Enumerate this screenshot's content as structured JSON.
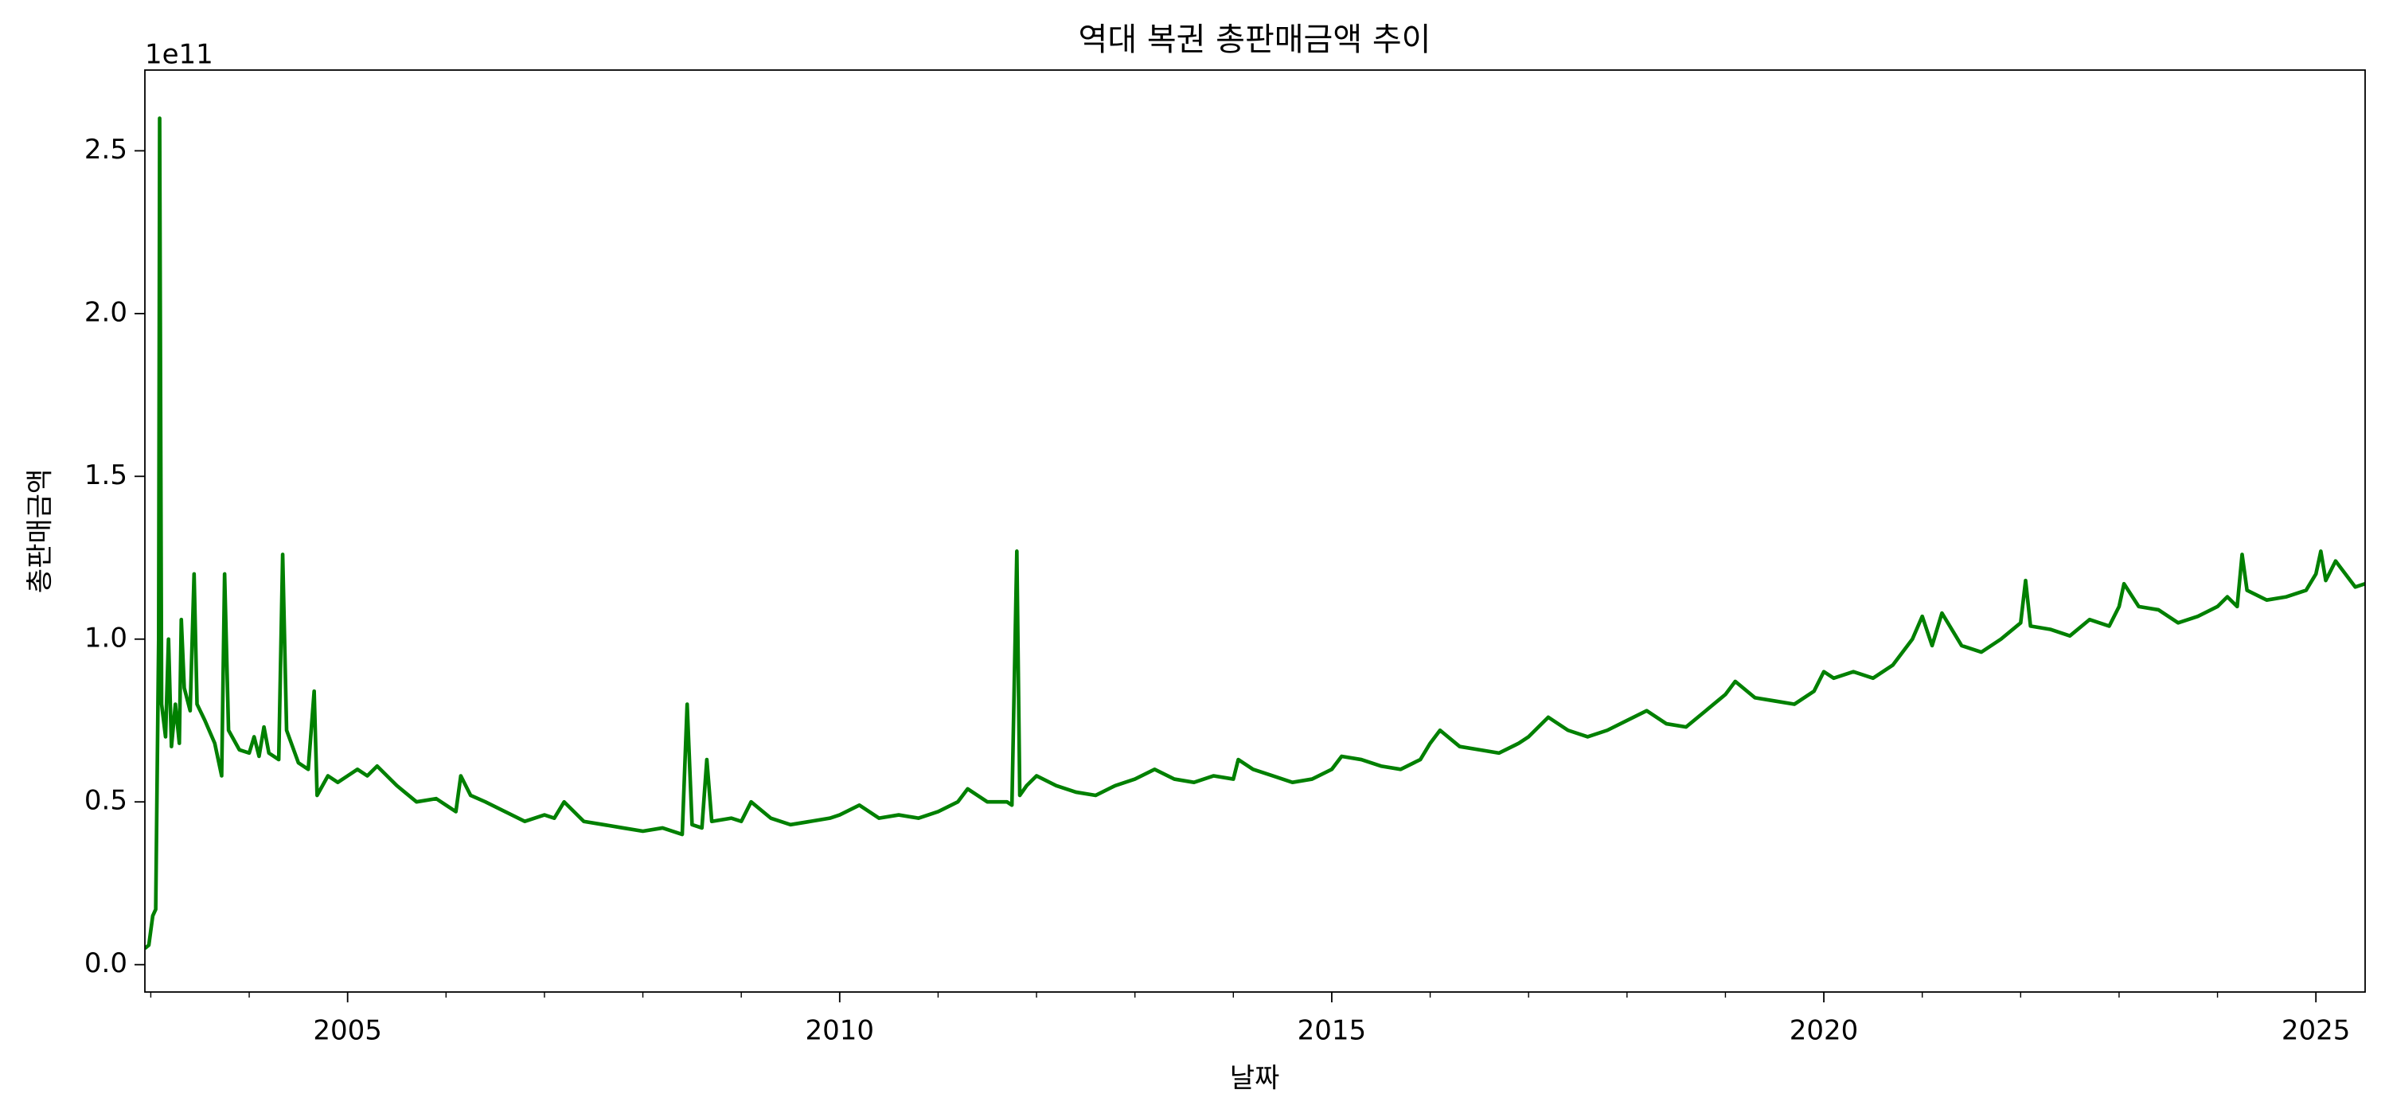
{
  "chart_data": {
    "type": "line",
    "title": "역대 복권 총판매금액 추이",
    "xlabel": "날짜",
    "ylabel": "총판매금액",
    "y_offset_label": "1e11",
    "color": "#008000",
    "xlim": [
      2002.94,
      2025.5
    ],
    "xticks": [
      2005,
      2010,
      2015,
      2020,
      2025
    ],
    "xminor_ticks": [
      2003,
      2004,
      2006,
      2007,
      2008,
      2009,
      2011,
      2012,
      2013,
      2014,
      2016,
      2017,
      2018,
      2019,
      2021,
      2022,
      2023,
      2024
    ],
    "ylim": [
      -8400000000.0,
      274800000000.0
    ],
    "yticks": [
      {
        "value": 0,
        "label": "0.0"
      },
      {
        "value": 50000000000.0,
        "label": "0.5"
      },
      {
        "value": 100000000000.0,
        "label": "1.0"
      },
      {
        "value": 150000000000.0,
        "label": "1.5"
      },
      {
        "value": 200000000000.0,
        "label": "2.0"
      },
      {
        "value": 250000000000.0,
        "label": "2.5"
      }
    ],
    "x": [
      2002.94,
      2002.98,
      2003.02,
      2003.05,
      2003.08,
      2003.09,
      2003.11,
      2003.15,
      2003.18,
      2003.21,
      2003.25,
      2003.29,
      2003.31,
      2003.34,
      2003.4,
      2003.44,
      2003.47,
      2003.55,
      2003.65,
      2003.72,
      2003.75,
      2003.79,
      2003.9,
      2004.0,
      2004.05,
      2004.1,
      2004.15,
      2004.2,
      2004.3,
      2004.34,
      2004.38,
      2004.5,
      2004.6,
      2004.66,
      2004.69,
      2004.8,
      2004.9,
      2005.0,
      2005.1,
      2005.2,
      2005.3,
      2005.5,
      2005.7,
      2005.9,
      2006.0,
      2006.1,
      2006.15,
      2006.25,
      2006.4,
      2006.6,
      2006.8,
      2007.0,
      2007.1,
      2007.2,
      2007.4,
      2007.6,
      2007.8,
      2008.0,
      2008.2,
      2008.4,
      2008.45,
      2008.5,
      2008.6,
      2008.65,
      2008.7,
      2008.9,
      2009.0,
      2009.1,
      2009.3,
      2009.5,
      2009.7,
      2009.9,
      2010.0,
      2010.2,
      2010.4,
      2010.6,
      2010.8,
      2011.0,
      2011.2,
      2011.3,
      2011.5,
      2011.7,
      2011.75,
      2011.8,
      2011.83,
      2011.9,
      2012.0,
      2012.2,
      2012.4,
      2012.6,
      2012.8,
      2013.0,
      2013.2,
      2013.4,
      2013.6,
      2013.8,
      2014.0,
      2014.05,
      2014.2,
      2014.4,
      2014.6,
      2014.8,
      2015.0,
      2015.1,
      2015.3,
      2015.5,
      2015.7,
      2015.9,
      2016.0,
      2016.1,
      2016.3,
      2016.5,
      2016.7,
      2016.9,
      2017.0,
      2017.2,
      2017.4,
      2017.6,
      2017.8,
      2018.0,
      2018.2,
      2018.4,
      2018.6,
      2018.8,
      2019.0,
      2019.1,
      2019.3,
      2019.5,
      2019.7,
      2019.9,
      2020.0,
      2020.1,
      2020.3,
      2020.5,
      2020.7,
      2020.9,
      2021.0,
      2021.1,
      2021.2,
      2021.4,
      2021.6,
      2021.8,
      2022.0,
      2022.05,
      2022.1,
      2022.3,
      2022.5,
      2022.7,
      2022.9,
      2023.0,
      2023.05,
      2023.2,
      2023.4,
      2023.6,
      2023.8,
      2024.0,
      2024.1,
      2024.2,
      2024.25,
      2024.3,
      2024.5,
      2024.7,
      2024.9,
      2025.0,
      2025.05,
      2025.1,
      2025.2,
      2025.3,
      2025.4,
      2025.5
    ],
    "series": [
      {
        "name": "총판매금액",
        "color": "#008000",
        "values": [
          5000000000.0,
          6000000000.0,
          15000000000.0,
          17000000000.0,
          100000000000.0,
          260000000000.0,
          80000000000.0,
          70000000000.0,
          100000000000.0,
          67000000000.0,
          80000000000.0,
          68000000000.0,
          106000000000.0,
          85000000000.0,
          78000000000.0,
          120000000000.0,
          80000000000.0,
          75000000000.0,
          68000000000.0,
          58000000000.0,
          120000000000.0,
          72000000000.0,
          66000000000.0,
          65000000000.0,
          70000000000.0,
          64000000000.0,
          73000000000.0,
          65000000000.0,
          63000000000.0,
          126000000000.0,
          72000000000.0,
          62000000000.0,
          60000000000.0,
          84000000000.0,
          52000000000.0,
          58000000000.0,
          56000000000.0,
          58000000000.0,
          60000000000.0,
          58000000000.0,
          61000000000.0,
          55000000000.0,
          50000000000.0,
          51000000000.0,
          49000000000.0,
          47000000000.0,
          58000000000.0,
          52000000000.0,
          50000000000.0,
          47000000000.0,
          44000000000.0,
          46000000000.0,
          45000000000.0,
          50000000000.0,
          44000000000.0,
          43000000000.0,
          42000000000.0,
          41000000000.0,
          42000000000.0,
          40000000000.0,
          80000000000.0,
          43000000000.0,
          42000000000.0,
          63000000000.0,
          44000000000.0,
          45000000000.0,
          44000000000.0,
          50000000000.0,
          45000000000.0,
          43000000000.0,
          44000000000.0,
          45000000000.0,
          46000000000.0,
          49000000000.0,
          45000000000.0,
          46000000000.0,
          45000000000.0,
          47000000000.0,
          50000000000.0,
          54000000000.0,
          50000000000.0,
          50000000000.0,
          49000000000.0,
          127000000000.0,
          52000000000.0,
          55000000000.0,
          58000000000.0,
          55000000000.0,
          53000000000.0,
          52000000000.0,
          55000000000.0,
          57000000000.0,
          60000000000.0,
          57000000000.0,
          56000000000.0,
          58000000000.0,
          57000000000.0,
          63000000000.0,
          60000000000.0,
          58000000000.0,
          56000000000.0,
          57000000000.0,
          60000000000.0,
          64000000000.0,
          63000000000.0,
          61000000000.0,
          60000000000.0,
          63000000000.0,
          68000000000.0,
          72000000000.0,
          67000000000.0,
          66000000000.0,
          65000000000.0,
          68000000000.0,
          70000000000.0,
          76000000000.0,
          72000000000.0,
          70000000000.0,
          72000000000.0,
          75000000000.0,
          78000000000.0,
          74000000000.0,
          73000000000.0,
          78000000000.0,
          83000000000.0,
          87000000000.0,
          82000000000.0,
          81000000000.0,
          80000000000.0,
          84000000000.0,
          90000000000.0,
          88000000000.0,
          90000000000.0,
          88000000000.0,
          92000000000.0,
          100000000000.0,
          107000000000.0,
          98000000000.0,
          108000000000.0,
          98000000000.0,
          96000000000.0,
          100000000000.0,
          105000000000.0,
          118000000000.0,
          104000000000.0,
          103000000000.0,
          101000000000.0,
          106000000000.0,
          104000000000.0,
          110000000000.0,
          117000000000.0,
          110000000000.0,
          109000000000.0,
          105000000000.0,
          107000000000.0,
          110000000000.0,
          113000000000.0,
          110000000000.0,
          126000000000.0,
          115000000000.0,
          112000000000.0,
          113000000000.0,
          115000000000.0,
          120000000000.0,
          127000000000.0,
          118000000000.0,
          124000000000.0,
          120000000000.0,
          116000000000.0,
          117000000000.0
        ]
      }
    ],
    "grid": false,
    "legend": false
  }
}
